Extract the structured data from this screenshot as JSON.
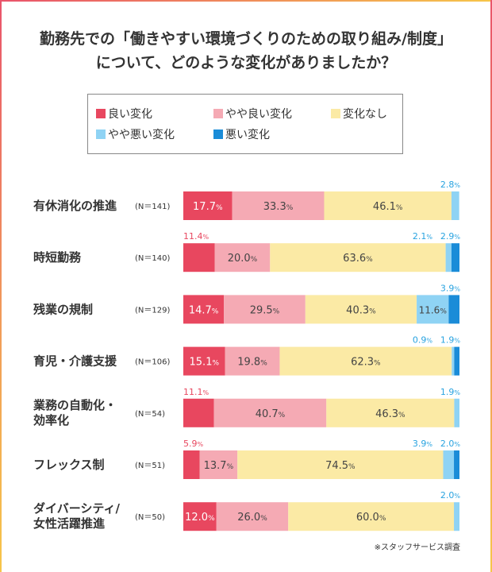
{
  "title_lines": [
    "勤務先での「働きやすい環境づくりのための取り組み/制度」",
    "について、どのような変化がありましたか？"
  ],
  "footnote": "※スタッフサービス調査",
  "colors": {
    "good": "#e8475f",
    "somewhat_good": "#f5aab4",
    "no_change": "#fbeaa5",
    "somewhat_bad": "#8fd3f4",
    "bad": "#1a8cd8",
    "label_blue": "#29a3e0",
    "label_red": "#e8475f"
  },
  "chart_data": {
    "type": "bar",
    "orientation": "horizontal",
    "stacked": "100%",
    "title": "勤務先での「働きやすい環境づくりのための取り組み/制度」について、どのような変化がありましたか？",
    "legend_position": "top",
    "value_unit": "%",
    "categories": [
      "有休消化の推進",
      "時短勤務",
      "残業の規制",
      "育児・介護支援",
      "業務の自動化・効率化",
      "フレックス制",
      "ダイバーシティ/女性活躍推進"
    ],
    "category_display": [
      [
        "有休消化の推進"
      ],
      [
        "時短勤務"
      ],
      [
        "残業の規制"
      ],
      [
        "育児・介護支援"
      ],
      [
        "業務の自動化・",
        "効率化"
      ],
      [
        "フレックス制"
      ],
      [
        "ダイバーシティ/",
        "女性活躍推進"
      ]
    ],
    "sample_sizes": [
      "(N＝141)",
      "(N＝140)",
      "(N＝129)",
      "(N＝106)",
      "(N＝54)",
      "(N＝51)",
      "(N＝50)"
    ],
    "series": [
      {
        "name": "良い変化",
        "key": "good",
        "values": [
          17.7,
          11.4,
          14.7,
          15.1,
          11.1,
          5.9,
          12.0
        ],
        "labels": [
          "17.7",
          "11.4",
          "14.7",
          "15.1",
          "11.1",
          "5.9",
          "12.0"
        ]
      },
      {
        "name": "やや良い変化",
        "key": "somewhat_good",
        "values": [
          33.3,
          20.0,
          29.5,
          19.8,
          40.7,
          13.7,
          26.0
        ],
        "labels": [
          "33.3",
          "20.0",
          "29.5",
          "19.8",
          "40.7",
          "13.7",
          "26.0"
        ]
      },
      {
        "name": "変化なし",
        "key": "no_change",
        "values": [
          46.1,
          63.6,
          40.3,
          62.3,
          46.3,
          74.5,
          60.0
        ],
        "labels": [
          "46.1",
          "63.6",
          "40.3",
          "62.3",
          "46.3",
          "74.5",
          "60.0"
        ]
      },
      {
        "name": "やや悪い変化",
        "key": "somewhat_bad",
        "values": [
          2.8,
          2.1,
          11.6,
          0.9,
          1.9,
          3.9,
          2.0
        ],
        "labels": [
          "2.8",
          "2.1",
          "11.6",
          "0.9",
          "1.9",
          "3.9",
          "2.0"
        ]
      },
      {
        "name": "悪い変化",
        "key": "bad",
        "values": [
          0.0,
          2.9,
          3.9,
          1.9,
          0.0,
          2.0,
          0.0
        ],
        "labels": [
          "",
          "2.9",
          "3.9",
          "1.9",
          "",
          "2.0",
          ""
        ]
      }
    ]
  }
}
